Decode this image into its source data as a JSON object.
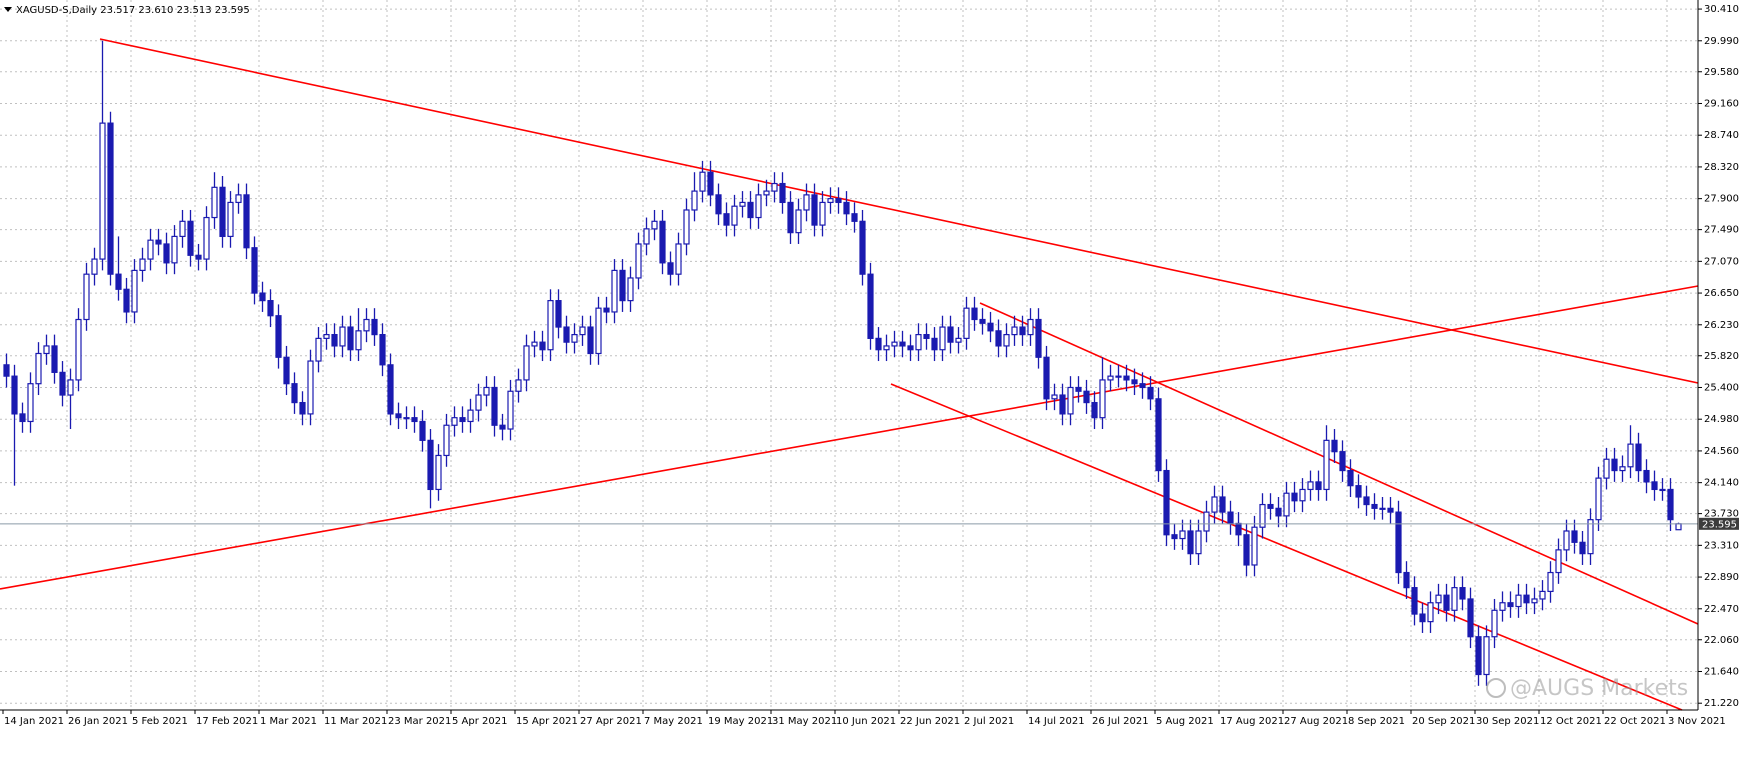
{
  "chart_data": {
    "type": "candlestick",
    "title": "XAGUSD-S,Daily  23.517 23.610 23.513 23.595",
    "watermark": "@AUGS Markets",
    "color": "#1a1ab0",
    "grid": true,
    "categories": [
      "14 Jan 2021",
      null,
      null,
      null,
      null,
      null,
      null,
      null,
      "26 Jan 2021",
      null,
      null,
      null,
      null,
      null,
      null,
      null,
      "5 Feb 2021",
      null,
      null,
      null,
      null,
      null,
      null,
      null,
      "17 Feb 2021",
      null,
      null,
      null,
      null,
      null,
      null,
      null,
      "1 Mar 2021",
      null,
      null,
      null,
      null,
      null,
      null,
      null,
      "11 Mar 2021",
      null,
      null,
      null,
      null,
      null,
      null,
      null,
      "23 Mar 2021",
      null,
      null,
      null,
      null,
      null,
      null,
      null,
      "5 Apr 2021",
      null,
      null,
      null,
      null,
      null,
      null,
      null,
      "15 Apr 2021",
      null,
      null,
      null,
      null,
      null,
      null,
      null,
      "27 Apr 2021",
      null,
      null,
      null,
      null,
      null,
      null,
      null,
      "7 May 2021",
      null,
      null,
      null,
      null,
      null,
      null,
      null,
      "19 May 2021",
      null,
      null,
      null,
      null,
      null,
      null,
      null,
      "31 May 2021",
      null,
      null,
      null,
      null,
      null,
      null,
      null,
      "10 Jun 2021",
      null,
      null,
      null,
      null,
      null,
      null,
      null,
      "22 Jun 2021",
      null,
      null,
      null,
      null,
      null,
      null,
      null,
      "2 Jul 2021",
      null,
      null,
      null,
      null,
      null,
      null,
      null,
      "14 Jul 2021",
      null,
      null,
      null,
      null,
      null,
      null,
      null,
      "26 Jul 2021",
      null,
      null,
      null,
      null,
      null,
      null,
      null,
      "5 Aug 2021",
      null,
      null,
      null,
      null,
      null,
      null,
      null,
      "17 Aug 2021",
      null,
      null,
      null,
      null,
      null,
      null,
      null,
      "27 Aug 2021",
      null,
      null,
      null,
      null,
      null,
      null,
      null,
      "8 Sep 2021",
      null,
      null,
      null,
      null,
      null,
      null,
      null,
      "20 Sep 2021",
      null,
      null,
      null,
      null,
      null,
      null,
      null,
      "30 Sep 2021",
      null,
      null,
      null,
      null,
      null,
      null,
      null,
      "12 Oct 2021",
      null,
      null,
      null,
      null,
      null,
      null,
      null,
      "22 Oct 2021",
      null,
      null,
      null,
      null,
      null,
      null,
      null,
      "3 Nov 2021",
      null
    ],
    "open": [
      25.7,
      25.55,
      25.05,
      24.95,
      25.45,
      25.85,
      25.95,
      25.6,
      25.3,
      25.5,
      26.3,
      26.9,
      27.1,
      28.9,
      26.9,
      26.7,
      26.4,
      26.95,
      27.1,
      27.35,
      27.3,
      27.05,
      27.4,
      27.6,
      27.15,
      27.1,
      27.65,
      28.05,
      27.4,
      27.85,
      27.95,
      27.25,
      26.65,
      26.55,
      26.35,
      25.8,
      25.45,
      25.2,
      25.05,
      25.75,
      26.05,
      26.1,
      25.95,
      26.2,
      25.9,
      26.15,
      26.3,
      26.1,
      25.7,
      25.05,
      25.0,
      25.0,
      24.95,
      24.7,
      24.05,
      24.5,
      24.9,
      25.0,
      24.95,
      25.1,
      25.3,
      25.4,
      24.9,
      24.85,
      25.35,
      25.5,
      25.95,
      26.0,
      25.9,
      26.55,
      26.2,
      26.0,
      26.1,
      26.2,
      25.85,
      26.45,
      26.4,
      26.95,
      26.55,
      26.85,
      27.3,
      27.5,
      27.6,
      27.05,
      26.9,
      27.3,
      27.75,
      28.0,
      28.25,
      27.95,
      27.7,
      27.55,
      27.8,
      27.85,
      27.65,
      27.95,
      28.0,
      28.1,
      27.85,
      27.45,
      27.75,
      27.95,
      27.55,
      27.85,
      27.9,
      27.85,
      27.7,
      27.6,
      26.9,
      26.05,
      25.9,
      25.95,
      26.0,
      25.95,
      25.9,
      26.1,
      26.05,
      25.9,
      26.2,
      26.0,
      26.05,
      26.45,
      26.3,
      26.25,
      26.15,
      25.95,
      26.1,
      26.2,
      26.1,
      26.3,
      25.8,
      25.25,
      25.3,
      25.05,
      25.4,
      25.35,
      25.2,
      25.0,
      25.5,
      25.55,
      25.55,
      25.5,
      25.45,
      25.4,
      25.25,
      24.3,
      23.45,
      23.4,
      23.5,
      23.2,
      23.5,
      23.75,
      23.95,
      23.75,
      23.6,
      23.45,
      23.05,
      23.55,
      23.85,
      23.8,
      23.7,
      24.0,
      23.9,
      24.05,
      24.15,
      24.05,
      24.7,
      24.55,
      24.3,
      24.1,
      23.95,
      23.85,
      23.8,
      23.8,
      23.75,
      22.95,
      22.75,
      22.4,
      22.3,
      22.55,
      22.65,
      22.45,
      22.75,
      22.6,
      22.1,
      21.6,
      22.1,
      22.45,
      22.55,
      22.5,
      22.65,
      22.55,
      22.6,
      22.7,
      22.95,
      23.25,
      23.5,
      23.35,
      23.2,
      23.65,
      24.2,
      24.45,
      24.3,
      24.35,
      24.65,
      24.3,
      24.15,
      24.05,
      24.05,
      23.517
    ],
    "high": [
      25.85,
      25.7,
      25.2,
      25.6,
      26.0,
      26.1,
      26.1,
      25.75,
      25.65,
      26.45,
      27.05,
      27.25,
      29.99,
      29.05,
      27.4,
      26.85,
      27.1,
      27.25,
      27.5,
      27.5,
      27.45,
      27.55,
      27.75,
      27.75,
      27.3,
      27.8,
      28.25,
      28.2,
      28.0,
      28.1,
      28.1,
      27.4,
      26.8,
      26.7,
      26.5,
      25.95,
      25.6,
      25.35,
      25.9,
      26.2,
      26.25,
      26.25,
      26.35,
      26.35,
      26.45,
      26.45,
      26.45,
      26.25,
      25.85,
      25.2,
      25.15,
      25.15,
      25.1,
      24.85,
      24.65,
      25.05,
      25.15,
      25.15,
      25.25,
      25.45,
      25.55,
      25.55,
      25.05,
      25.5,
      25.65,
      26.1,
      26.15,
      26.15,
      26.7,
      26.7,
      26.35,
      26.25,
      26.35,
      26.35,
      26.6,
      26.6,
      27.1,
      27.1,
      27.0,
      27.45,
      27.65,
      27.75,
      27.75,
      27.2,
      27.45,
      27.9,
      28.25,
      28.4,
      28.4,
      28.1,
      27.85,
      27.95,
      28.0,
      28.0,
      28.1,
      28.15,
      28.25,
      28.25,
      28.0,
      27.9,
      28.1,
      28.1,
      28.0,
      28.05,
      28.05,
      28.0,
      27.85,
      27.75,
      27.05,
      26.2,
      26.1,
      26.15,
      26.15,
      26.1,
      26.25,
      26.25,
      26.2,
      26.35,
      26.35,
      26.2,
      26.6,
      26.6,
      26.45,
      26.4,
      26.3,
      26.25,
      26.35,
      26.35,
      26.45,
      26.45,
      25.95,
      25.45,
      25.45,
      25.55,
      25.55,
      25.5,
      25.35,
      25.8,
      25.7,
      25.7,
      25.7,
      25.65,
      25.6,
      25.55,
      25.4,
      24.45,
      23.6,
      23.65,
      23.65,
      23.65,
      23.9,
      24.1,
      24.1,
      23.9,
      23.75,
      23.6,
      23.7,
      24.0,
      24.0,
      23.95,
      24.15,
      24.15,
      24.2,
      24.3,
      24.3,
      24.9,
      24.85,
      24.7,
      24.45,
      24.25,
      24.1,
      24.0,
      23.95,
      23.95,
      23.9,
      23.1,
      22.9,
      22.55,
      22.7,
      22.8,
      22.8,
      22.9,
      22.9,
      22.75,
      22.25,
      22.25,
      22.6,
      22.7,
      22.7,
      22.8,
      22.8,
      22.75,
      22.85,
      23.1,
      23.4,
      23.65,
      23.65,
      23.5,
      23.8,
      24.35,
      24.6,
      24.6,
      24.5,
      24.9,
      24.8,
      24.45,
      24.3,
      24.2,
      24.2,
      23.61
    ],
    "low": [
      25.4,
      24.1,
      24.8,
      24.8,
      25.3,
      25.7,
      25.45,
      25.15,
      24.85,
      25.35,
      26.15,
      26.75,
      26.95,
      26.75,
      26.55,
      26.25,
      26.25,
      26.8,
      26.95,
      27.15,
      26.9,
      26.9,
      27.25,
      27.0,
      26.95,
      26.95,
      27.5,
      27.25,
      27.25,
      27.7,
      27.1,
      26.5,
      26.4,
      26.2,
      25.65,
      25.3,
      25.05,
      24.9,
      24.9,
      25.6,
      25.9,
      25.8,
      25.8,
      25.75,
      25.75,
      26.0,
      25.95,
      25.55,
      24.9,
      24.85,
      24.85,
      24.8,
      24.55,
      23.8,
      23.9,
      24.35,
      24.75,
      24.8,
      24.8,
      24.95,
      25.15,
      24.75,
      24.7,
      24.7,
      25.2,
      25.35,
      25.8,
      25.75,
      25.75,
      26.05,
      25.85,
      25.85,
      25.95,
      25.7,
      25.7,
      26.25,
      26.25,
      26.4,
      26.4,
      26.7,
      27.15,
      27.35,
      26.9,
      26.75,
      26.75,
      27.15,
      27.6,
      27.85,
      27.8,
      27.55,
      27.4,
      27.4,
      27.65,
      27.5,
      27.5,
      27.8,
      27.85,
      27.7,
      27.3,
      27.3,
      27.6,
      27.4,
      27.4,
      27.7,
      27.7,
      27.55,
      27.45,
      26.75,
      25.9,
      25.75,
      25.75,
      25.8,
      25.8,
      25.75,
      25.75,
      25.9,
      25.75,
      25.75,
      25.85,
      25.85,
      25.9,
      26.15,
      26.1,
      26.0,
      25.8,
      25.8,
      25.95,
      25.95,
      25.95,
      25.65,
      25.1,
      25.1,
      24.9,
      24.9,
      25.2,
      25.05,
      24.85,
      24.85,
      25.35,
      25.4,
      25.35,
      25.3,
      25.25,
      25.1,
      24.15,
      23.3,
      23.25,
      23.25,
      23.05,
      23.05,
      23.35,
      23.6,
      23.6,
      23.45,
      23.3,
      22.9,
      22.9,
      23.4,
      23.65,
      23.55,
      23.55,
      23.75,
      23.75,
      23.9,
      23.9,
      23.9,
      24.4,
      24.15,
      23.95,
      23.8,
      23.7,
      23.65,
      23.65,
      23.6,
      22.8,
      22.6,
      22.25,
      22.15,
      22.15,
      22.4,
      22.3,
      22.3,
      22.45,
      21.95,
      21.45,
      21.45,
      21.95,
      22.3,
      22.35,
      22.35,
      22.4,
      22.4,
      22.45,
      22.55,
      22.8,
      23.1,
      23.2,
      23.05,
      23.05,
      23.5,
      24.05,
      24.15,
      24.15,
      24.2,
      24.15,
      24.0,
      23.9,
      23.9,
      23.5,
      23.513
    ],
    "close": [
      25.55,
      25.05,
      24.95,
      25.45,
      25.85,
      25.95,
      25.6,
      25.3,
      25.5,
      26.3,
      26.9,
      27.1,
      28.9,
      26.9,
      26.7,
      26.4,
      26.95,
      27.1,
      27.35,
      27.3,
      27.05,
      27.4,
      27.6,
      27.15,
      27.1,
      27.65,
      28.05,
      27.4,
      27.85,
      27.95,
      27.25,
      26.65,
      26.55,
      26.35,
      25.8,
      25.45,
      25.2,
      25.05,
      25.75,
      26.05,
      26.1,
      25.95,
      26.2,
      25.9,
      26.15,
      26.3,
      26.1,
      25.7,
      25.05,
      25.0,
      25.0,
      24.95,
      24.7,
      24.05,
      24.5,
      24.9,
      25.0,
      24.95,
      25.1,
      25.3,
      25.4,
      24.9,
      24.85,
      25.35,
      25.5,
      25.95,
      26.0,
      25.9,
      26.55,
      26.2,
      26.0,
      26.1,
      26.2,
      25.85,
      26.45,
      26.4,
      26.95,
      26.55,
      26.85,
      27.3,
      27.5,
      27.6,
      27.05,
      26.9,
      27.3,
      27.75,
      28.0,
      28.25,
      27.95,
      27.7,
      27.55,
      27.8,
      27.85,
      27.65,
      27.95,
      28.0,
      28.1,
      27.85,
      27.45,
      27.75,
      27.95,
      27.55,
      27.85,
      27.9,
      27.85,
      27.7,
      27.6,
      26.9,
      26.05,
      25.9,
      25.95,
      26.0,
      25.95,
      25.9,
      26.1,
      26.05,
      25.9,
      26.2,
      26.0,
      26.05,
      26.45,
      26.3,
      26.25,
      26.15,
      25.95,
      26.1,
      26.2,
      26.1,
      26.3,
      25.8,
      25.25,
      25.3,
      25.05,
      25.4,
      25.35,
      25.2,
      25.0,
      25.5,
      25.55,
      25.55,
      25.5,
      25.45,
      25.4,
      25.25,
      24.3,
      23.45,
      23.4,
      23.5,
      23.2,
      23.5,
      23.75,
      23.95,
      23.75,
      23.6,
      23.45,
      23.05,
      23.55,
      23.85,
      23.8,
      23.7,
      24.0,
      23.9,
      24.05,
      24.15,
      24.05,
      24.7,
      24.55,
      24.3,
      24.1,
      23.95,
      23.85,
      23.8,
      23.8,
      23.75,
      22.95,
      22.75,
      22.4,
      22.3,
      22.55,
      22.65,
      22.45,
      22.75,
      22.6,
      22.1,
      21.6,
      22.1,
      22.45,
      22.55,
      22.5,
      22.65,
      22.55,
      22.6,
      22.7,
      22.95,
      23.25,
      23.5,
      23.35,
      23.2,
      23.65,
      24.2,
      24.45,
      24.3,
      24.35,
      24.65,
      24.3,
      24.15,
      24.05,
      24.05,
      23.65,
      23.595
    ],
    "ylim": [
      21.13,
      30.53
    ],
    "yticks": [
      {
        "value": 30.41,
        "label": "30.410"
      },
      {
        "value": 29.99,
        "label": "29.990"
      },
      {
        "value": 29.58,
        "label": "29.580"
      },
      {
        "value": 29.16,
        "label": "29.160"
      },
      {
        "value": 28.74,
        "label": "28.740"
      },
      {
        "value": 28.32,
        "label": "28.320"
      },
      {
        "value": 27.9,
        "label": "27.900"
      },
      {
        "value": 27.49,
        "label": "27.490"
      },
      {
        "value": 27.07,
        "label": "27.070"
      },
      {
        "value": 26.65,
        "label": "26.650"
      },
      {
        "value": 26.23,
        "label": "26.230"
      },
      {
        "value": 25.82,
        "label": "25.820"
      },
      {
        "value": 25.4,
        "label": "25.400"
      },
      {
        "value": 24.98,
        "label": "24.980"
      },
      {
        "value": 24.56,
        "label": "24.560"
      },
      {
        "value": 24.14,
        "label": "24.140"
      },
      {
        "value": 23.73,
        "label": "23.730"
      },
      {
        "value": 23.31,
        "label": "23.310"
      },
      {
        "value": 22.89,
        "label": "22.890"
      },
      {
        "value": 22.47,
        "label": "22.470"
      },
      {
        "value": 22.06,
        "label": "22.060"
      },
      {
        "value": 21.64,
        "label": "21.640"
      },
      {
        "value": 21.22,
        "label": "21.220"
      }
    ]
  }
}
